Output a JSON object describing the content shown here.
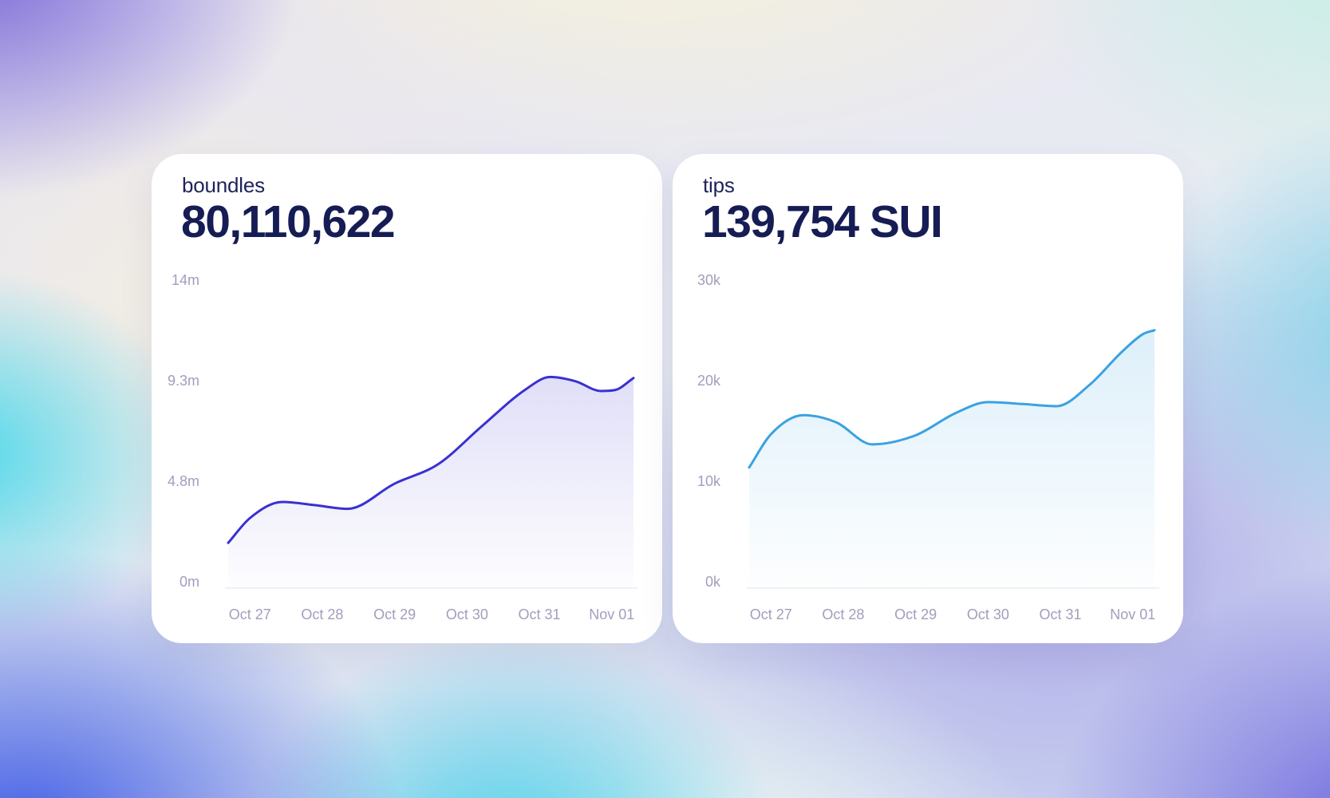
{
  "cards": [
    {
      "title": "boundles",
      "value": "80,110,622"
    },
    {
      "title": "tips",
      "value": "139,754 SUI"
    }
  ],
  "chart_data": [
    {
      "type": "area",
      "series_name": "boundles",
      "x_labels": [
        "Oct 27",
        "Oct 28",
        "Oct 29",
        "Oct 30",
        "Oct 31",
        "Nov 01"
      ],
      "x_tick_positions": [
        0,
        1,
        2,
        3,
        4,
        5
      ],
      "x_domain": [
        -0.3,
        5.3
      ],
      "y_tick_labels": [
        "0m",
        "4.8m",
        "9.3m",
        "14m"
      ],
      "y_max": 14,
      "points": [
        [
          -0.3,
          2.1
        ],
        [
          0,
          3.25
        ],
        [
          0.45,
          4.0
        ],
        [
          0.9,
          3.85
        ],
        [
          1.35,
          3.68
        ],
        [
          2,
          4.85
        ],
        [
          2.6,
          5.75
        ],
        [
          3.2,
          7.5
        ],
        [
          3.8,
          9.2
        ],
        [
          4.15,
          9.8
        ],
        [
          4.5,
          9.6
        ],
        [
          4.85,
          9.15
        ],
        [
          5.05,
          9.2
        ],
        [
          5.3,
          9.75
        ]
      ],
      "line_color": "#3a30d2",
      "fill_color": "#4a41d6",
      "axis_label_color": "#a19ebc",
      "baseline_color": "#ececf4"
    },
    {
      "type": "area",
      "series_name": "tips",
      "x_labels": [
        "Oct 27",
        "Oct 28",
        "Oct 29",
        "Oct 30",
        "Oct 31",
        "Nov 01"
      ],
      "x_tick_positions": [
        0,
        1,
        2,
        3,
        4,
        5
      ],
      "x_domain": [
        -0.3,
        5.3
      ],
      "y_tick_labels": [
        "0k",
        "10k",
        "20k",
        "30k"
      ],
      "y_max": 30,
      "points": [
        [
          -0.3,
          12.0
        ],
        [
          0,
          15.3
        ],
        [
          0.45,
          17.2
        ],
        [
          0.9,
          16.5
        ],
        [
          1.4,
          14.3
        ],
        [
          2,
          15.2
        ],
        [
          2.55,
          17.4
        ],
        [
          3,
          18.5
        ],
        [
          3.5,
          18.3
        ],
        [
          3.95,
          18.1
        ],
        [
          4.4,
          20.2
        ],
        [
          4.85,
          23.5
        ],
        [
          5.15,
          25.3
        ],
        [
          5.3,
          25.65
        ]
      ],
      "line_color": "#3aa2e0",
      "fill_color": "#3aa2e0",
      "axis_label_color": "#a19ebc",
      "baseline_color": "#ececf4"
    }
  ]
}
